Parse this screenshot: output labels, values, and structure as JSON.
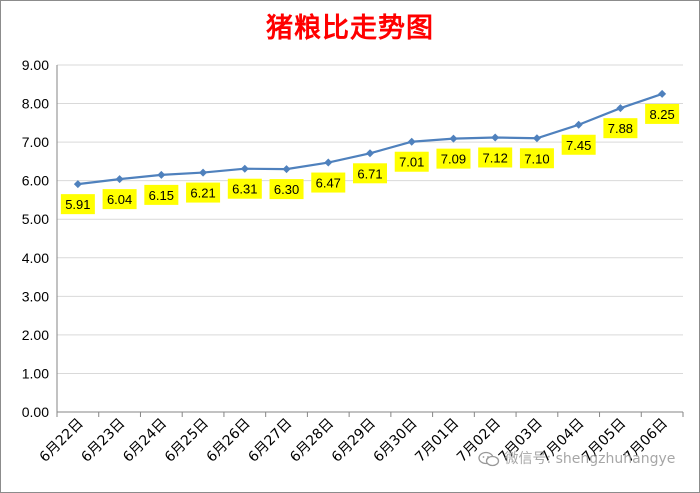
{
  "title": "猪粮比走势图",
  "colors": {
    "title": "#ff0000",
    "line": "#4f81bd",
    "label_bg": "#ffff00",
    "grid": "#d9d9d9"
  },
  "watermark": {
    "text": "微信号: shengzhuhangye",
    "icon": "wechat-icon"
  },
  "chart_data": {
    "type": "line",
    "title": "猪粮比走势图",
    "xlabel": "",
    "ylabel": "",
    "ylim": [
      0,
      9
    ],
    "y_ticks": [
      "0.00",
      "1.00",
      "2.00",
      "3.00",
      "4.00",
      "5.00",
      "6.00",
      "7.00",
      "8.00",
      "9.00"
    ],
    "grid": "horizontal",
    "legend": "none",
    "categories": [
      "6月22日",
      "6月23日",
      "6月24日",
      "6月25日",
      "6月26日",
      "6月27日",
      "6月28日",
      "6月29日",
      "6月30日",
      "7月01日",
      "7月02日",
      "7月03日",
      "7月04日",
      "7月05日",
      "7月06日"
    ],
    "values": [
      5.91,
      6.04,
      6.15,
      6.21,
      6.31,
      6.3,
      6.47,
      6.71,
      7.01,
      7.09,
      7.12,
      7.1,
      7.45,
      7.88,
      8.25
    ],
    "data_labels": [
      "5.91",
      "6.04",
      "6.15",
      "6.21",
      "6.31",
      "6.30",
      "6.47",
      "6.71",
      "7.01",
      "7.09",
      "7.12",
      "7.10",
      "7.45",
      "7.88",
      "8.25"
    ]
  }
}
